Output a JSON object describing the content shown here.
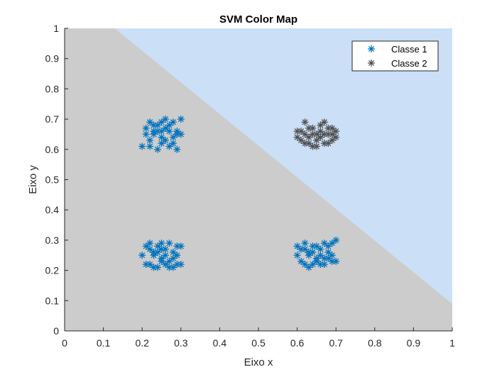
{
  "chart_data": {
    "type": "scatter",
    "title": "SVM Color Map",
    "xlabel": "Eixo x",
    "ylabel": "Eixo y",
    "xlim": [
      0,
      1
    ],
    "ylim": [
      0,
      1
    ],
    "xticks": [
      "0",
      "0.1",
      "0.2",
      "0.3",
      "0.4",
      "0.5",
      "0.6",
      "0.7",
      "0.8",
      "0.9",
      "1"
    ],
    "yticks": [
      "0",
      "0.1",
      "0.2",
      "0.3",
      "0.4",
      "0.5",
      "0.6",
      "0.7",
      "0.8",
      "0.9",
      "1"
    ],
    "grid": false,
    "legend_position": "top-right",
    "decision_regions": {
      "boundary": [
        [
          0.13,
          1.0
        ],
        [
          1.0,
          0.09
        ]
      ],
      "class1_color": "#cccccc",
      "class2_color": "#cbdff7"
    },
    "series": [
      {
        "name": "Classe 1",
        "marker": "asterisk",
        "color": "#0072bd",
        "points": [
          [
            0.21,
            0.67
          ],
          [
            0.22,
            0.69
          ],
          [
            0.23,
            0.66
          ],
          [
            0.24,
            0.68
          ],
          [
            0.25,
            0.64
          ],
          [
            0.26,
            0.7
          ],
          [
            0.27,
            0.66
          ],
          [
            0.28,
            0.69
          ],
          [
            0.29,
            0.65
          ],
          [
            0.2,
            0.61
          ],
          [
            0.22,
            0.63
          ],
          [
            0.24,
            0.6
          ],
          [
            0.25,
            0.62
          ],
          [
            0.27,
            0.61
          ],
          [
            0.29,
            0.6
          ],
          [
            0.23,
            0.65
          ],
          [
            0.26,
            0.67
          ],
          [
            0.28,
            0.64
          ],
          [
            0.3,
            0.7
          ],
          [
            0.21,
            0.65
          ],
          [
            0.24,
            0.66
          ],
          [
            0.27,
            0.68
          ],
          [
            0.29,
            0.66
          ],
          [
            0.22,
            0.61
          ],
          [
            0.25,
            0.69
          ],
          [
            0.26,
            0.63
          ],
          [
            0.28,
            0.62
          ],
          [
            0.23,
            0.68
          ],
          [
            0.3,
            0.65
          ],
          [
            0.25,
            0.66
          ],
          [
            0.21,
            0.28
          ],
          [
            0.22,
            0.29
          ],
          [
            0.23,
            0.26
          ],
          [
            0.24,
            0.28
          ],
          [
            0.25,
            0.24
          ],
          [
            0.26,
            0.27
          ],
          [
            0.27,
            0.29
          ],
          [
            0.28,
            0.26
          ],
          [
            0.29,
            0.28
          ],
          [
            0.2,
            0.25
          ],
          [
            0.22,
            0.22
          ],
          [
            0.24,
            0.21
          ],
          [
            0.25,
            0.23
          ],
          [
            0.27,
            0.21
          ],
          [
            0.29,
            0.22
          ],
          [
            0.23,
            0.25
          ],
          [
            0.26,
            0.25
          ],
          [
            0.28,
            0.24
          ],
          [
            0.3,
            0.28
          ],
          [
            0.21,
            0.22
          ],
          [
            0.24,
            0.26
          ],
          [
            0.27,
            0.23
          ],
          [
            0.29,
            0.25
          ],
          [
            0.22,
            0.27
          ],
          [
            0.25,
            0.29
          ],
          [
            0.26,
            0.22
          ],
          [
            0.28,
            0.21
          ],
          [
            0.23,
            0.21
          ],
          [
            0.3,
            0.22
          ],
          [
            0.25,
            0.27
          ],
          [
            0.61,
            0.27
          ],
          [
            0.62,
            0.29
          ],
          [
            0.63,
            0.26
          ],
          [
            0.64,
            0.28
          ],
          [
            0.65,
            0.24
          ],
          [
            0.66,
            0.27
          ],
          [
            0.67,
            0.29
          ],
          [
            0.68,
            0.26
          ],
          [
            0.69,
            0.29
          ],
          [
            0.6,
            0.25
          ],
          [
            0.62,
            0.22
          ],
          [
            0.64,
            0.22
          ],
          [
            0.65,
            0.23
          ],
          [
            0.67,
            0.22
          ],
          [
            0.69,
            0.23
          ],
          [
            0.63,
            0.25
          ],
          [
            0.66,
            0.25
          ],
          [
            0.68,
            0.24
          ],
          [
            0.7,
            0.3
          ],
          [
            0.61,
            0.23
          ],
          [
            0.64,
            0.26
          ],
          [
            0.67,
            0.24
          ],
          [
            0.69,
            0.25
          ],
          [
            0.62,
            0.27
          ],
          [
            0.65,
            0.28
          ],
          [
            0.66,
            0.22
          ],
          [
            0.68,
            0.28
          ],
          [
            0.63,
            0.21
          ],
          [
            0.7,
            0.23
          ],
          [
            0.6,
            0.28
          ]
        ]
      },
      {
        "name": "Classe 2",
        "marker": "asterisk",
        "color": "#505050",
        "points": [
          [
            0.61,
            0.66
          ],
          [
            0.62,
            0.69
          ],
          [
            0.63,
            0.64
          ],
          [
            0.64,
            0.67
          ],
          [
            0.65,
            0.63
          ],
          [
            0.66,
            0.66
          ],
          [
            0.67,
            0.69
          ],
          [
            0.68,
            0.65
          ],
          [
            0.69,
            0.67
          ],
          [
            0.6,
            0.64
          ],
          [
            0.62,
            0.62
          ],
          [
            0.64,
            0.61
          ],
          [
            0.65,
            0.65
          ],
          [
            0.67,
            0.62
          ],
          [
            0.69,
            0.63
          ],
          [
            0.63,
            0.67
          ],
          [
            0.66,
            0.64
          ],
          [
            0.68,
            0.62
          ],
          [
            0.7,
            0.66
          ],
          [
            0.61,
            0.63
          ],
          [
            0.64,
            0.65
          ],
          [
            0.66,
            0.68
          ],
          [
            0.68,
            0.67
          ],
          [
            0.62,
            0.65
          ],
          [
            0.65,
            0.61
          ],
          [
            0.63,
            0.62
          ],
          [
            0.67,
            0.65
          ],
          [
            0.69,
            0.65
          ],
          [
            0.7,
            0.64
          ],
          [
            0.6,
            0.66
          ]
        ]
      }
    ]
  }
}
